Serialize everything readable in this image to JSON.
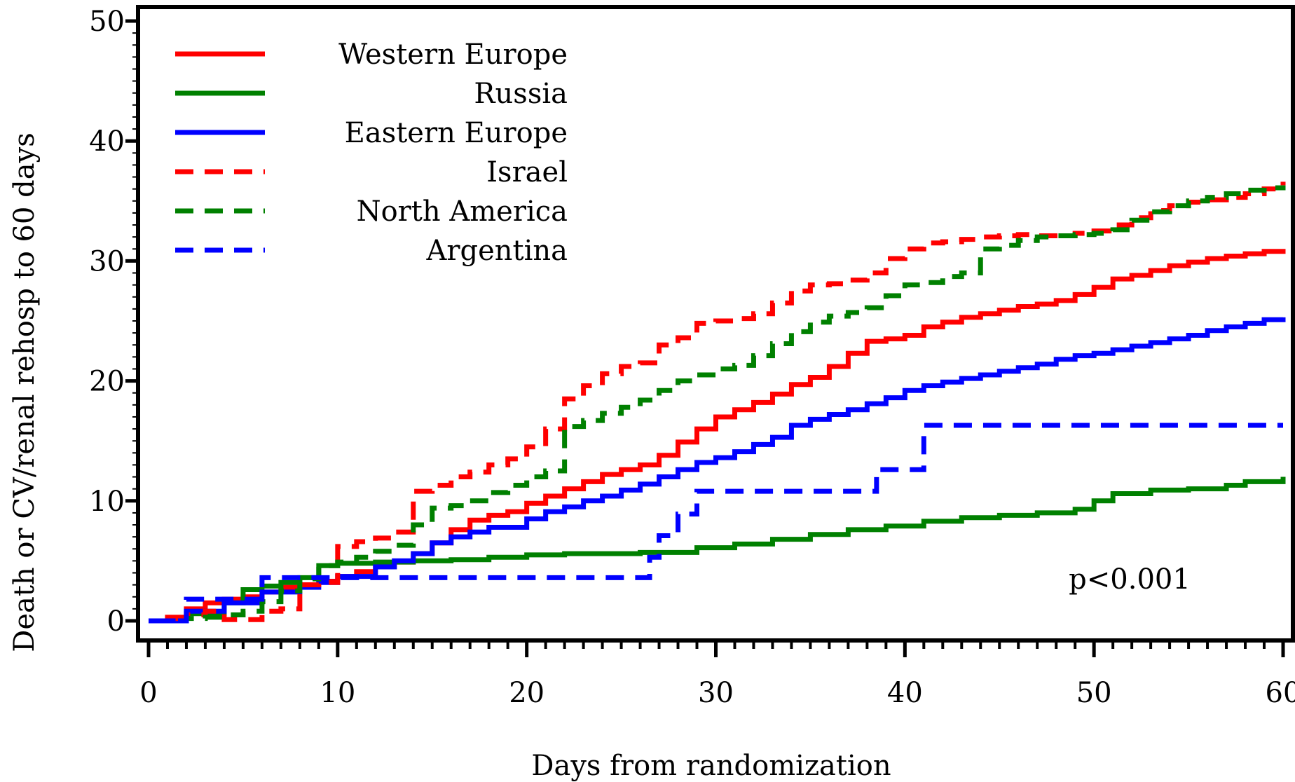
{
  "chart_data": {
    "type": "line",
    "step": true,
    "xlabel": "Days from randomization",
    "ylabel": "Death or CV/renal rehosp to 60 days",
    "xlim": [
      0,
      60
    ],
    "ylim": [
      0,
      50
    ],
    "x_ticks": [
      0,
      10,
      20,
      30,
      40,
      50,
      60
    ],
    "y_ticks": [
      0,
      10,
      20,
      30,
      40,
      50
    ],
    "grid": false,
    "legend_position": "top-left",
    "annotation": "p<0.001",
    "series": [
      {
        "name": "Western Europe",
        "color": "#ff0000",
        "style": "solid",
        "points": [
          [
            0,
            0
          ],
          [
            1,
            0.3
          ],
          [
            2,
            1.0
          ],
          [
            3,
            1.5
          ],
          [
            4,
            1.8
          ],
          [
            5,
            2.0
          ],
          [
            6,
            2.4
          ],
          [
            7,
            2.8
          ],
          [
            8,
            3.0
          ],
          [
            9,
            3.3
          ],
          [
            10,
            3.7
          ],
          [
            11,
            4.1
          ],
          [
            12,
            4.5
          ],
          [
            13,
            4.9
          ],
          [
            14,
            5.6
          ],
          [
            15,
            6.5
          ],
          [
            16,
            7.6
          ],
          [
            17,
            8.4
          ],
          [
            18,
            8.8
          ],
          [
            19,
            9.1
          ],
          [
            20,
            9.8
          ],
          [
            21,
            10.4
          ],
          [
            22,
            11.0
          ],
          [
            23,
            11.6
          ],
          [
            24,
            12.2
          ],
          [
            25,
            12.6
          ],
          [
            26,
            13.0
          ],
          [
            27,
            13.8
          ],
          [
            28,
            14.9
          ],
          [
            29,
            16.0
          ],
          [
            30,
            17.0
          ],
          [
            31,
            17.6
          ],
          [
            32,
            18.2
          ],
          [
            33,
            18.9
          ],
          [
            34,
            19.7
          ],
          [
            35,
            20.3
          ],
          [
            36,
            21.2
          ],
          [
            37,
            22.3
          ],
          [
            38,
            23.3
          ],
          [
            39,
            23.5
          ],
          [
            40,
            23.8
          ],
          [
            41,
            24.5
          ],
          [
            42,
            24.9
          ],
          [
            43,
            25.3
          ],
          [
            44,
            25.6
          ],
          [
            45,
            25.9
          ],
          [
            46,
            26.2
          ],
          [
            47,
            26.4
          ],
          [
            48,
            26.7
          ],
          [
            49,
            27.2
          ],
          [
            50,
            27.8
          ],
          [
            51,
            28.5
          ],
          [
            52,
            28.8
          ],
          [
            53,
            29.2
          ],
          [
            54,
            29.6
          ],
          [
            55,
            29.9
          ],
          [
            56,
            30.2
          ],
          [
            57,
            30.4
          ],
          [
            58,
            30.6
          ],
          [
            59,
            30.8
          ],
          [
            60,
            31.0
          ]
        ]
      },
      {
        "name": "Russia",
        "color": "#008000",
        "style": "solid",
        "points": [
          [
            0,
            0
          ],
          [
            2,
            0.6
          ],
          [
            4,
            1.5
          ],
          [
            5,
            2.6
          ],
          [
            6,
            2.9
          ],
          [
            7,
            3.2
          ],
          [
            8,
            3.6
          ],
          [
            9,
            4.6
          ],
          [
            10,
            4.8
          ],
          [
            12,
            4.9
          ],
          [
            14,
            5.0
          ],
          [
            16,
            5.1
          ],
          [
            18,
            5.3
          ],
          [
            20,
            5.5
          ],
          [
            22,
            5.6
          ],
          [
            26,
            5.7
          ],
          [
            29,
            6.1
          ],
          [
            31,
            6.4
          ],
          [
            33,
            6.8
          ],
          [
            35,
            7.2
          ],
          [
            37,
            7.6
          ],
          [
            39,
            7.9
          ],
          [
            41,
            8.3
          ],
          [
            43,
            8.6
          ],
          [
            45,
            8.8
          ],
          [
            47,
            9.0
          ],
          [
            49,
            9.3
          ],
          [
            50,
            10.0
          ],
          [
            51,
            10.6
          ],
          [
            53,
            10.9
          ],
          [
            55,
            11.0
          ],
          [
            57,
            11.3
          ],
          [
            58,
            11.6
          ],
          [
            60,
            12.0
          ]
        ]
      },
      {
        "name": "Eastern Europe",
        "color": "#0000ff",
        "style": "solid",
        "points": [
          [
            0,
            0
          ],
          [
            2,
            0.8
          ],
          [
            4,
            1.5
          ],
          [
            6,
            2.4
          ],
          [
            8,
            2.8
          ],
          [
            9,
            3.2
          ],
          [
            10,
            3.7
          ],
          [
            12,
            4.5
          ],
          [
            13,
            5.0
          ],
          [
            14,
            5.6
          ],
          [
            15,
            6.5
          ],
          [
            16,
            7.0
          ],
          [
            17,
            7.4
          ],
          [
            18,
            7.8
          ],
          [
            20,
            8.5
          ],
          [
            21,
            9.1
          ],
          [
            22,
            9.5
          ],
          [
            23,
            10.0
          ],
          [
            24,
            10.4
          ],
          [
            25,
            10.9
          ],
          [
            26,
            11.4
          ],
          [
            27,
            12.0
          ],
          [
            28,
            12.6
          ],
          [
            29,
            13.2
          ],
          [
            30,
            13.6
          ],
          [
            31,
            14.1
          ],
          [
            32,
            14.7
          ],
          [
            33,
            15.3
          ],
          [
            34,
            16.3
          ],
          [
            35,
            16.8
          ],
          [
            36,
            17.2
          ],
          [
            37,
            17.6
          ],
          [
            38,
            18.1
          ],
          [
            39,
            18.6
          ],
          [
            40,
            19.2
          ],
          [
            41,
            19.6
          ],
          [
            42,
            19.9
          ],
          [
            43,
            20.2
          ],
          [
            44,
            20.5
          ],
          [
            45,
            20.8
          ],
          [
            46,
            21.1
          ],
          [
            47,
            21.4
          ],
          [
            48,
            21.8
          ],
          [
            49,
            22.1
          ],
          [
            50,
            22.3
          ],
          [
            51,
            22.6
          ],
          [
            52,
            22.9
          ],
          [
            53,
            23.2
          ],
          [
            54,
            23.5
          ],
          [
            55,
            23.8
          ],
          [
            56,
            24.2
          ],
          [
            57,
            24.5
          ],
          [
            58,
            24.8
          ],
          [
            59,
            25.1
          ],
          [
            60,
            25.3
          ]
        ]
      },
      {
        "name": "Israel",
        "color": "#ff0000",
        "style": "dashed",
        "points": [
          [
            0,
            0
          ],
          [
            1,
            0.2
          ],
          [
            2,
            0.5
          ],
          [
            3,
            0.8
          ],
          [
            4,
            0.1
          ],
          [
            5,
            0.1
          ],
          [
            6,
            0.8
          ],
          [
            7,
            1.0
          ],
          [
            8,
            3.0
          ],
          [
            9,
            3.2
          ],
          [
            10,
            6.2
          ],
          [
            11,
            6.6
          ],
          [
            12,
            6.9
          ],
          [
            13,
            7.4
          ],
          [
            14,
            10.8
          ],
          [
            15,
            11.3
          ],
          [
            16,
            12.0
          ],
          [
            17,
            12.4
          ],
          [
            18,
            13.0
          ],
          [
            19,
            13.5
          ],
          [
            20,
            14.5
          ],
          [
            21,
            16.0
          ],
          [
            22,
            18.5
          ],
          [
            23,
            19.6
          ],
          [
            24,
            20.6
          ],
          [
            25,
            21.2
          ],
          [
            26,
            21.5
          ],
          [
            27,
            23.0
          ],
          [
            28,
            23.6
          ],
          [
            29,
            24.8
          ],
          [
            30,
            25.0
          ],
          [
            31,
            25.2
          ],
          [
            32,
            25.6
          ],
          [
            33,
            26.5
          ],
          [
            34,
            27.5
          ],
          [
            35,
            28.0
          ],
          [
            36,
            28.1
          ],
          [
            37,
            28.4
          ],
          [
            38,
            29.0
          ],
          [
            39,
            30.2
          ],
          [
            40,
            31.0
          ],
          [
            41,
            31.5
          ],
          [
            42,
            31.6
          ],
          [
            43,
            31.8
          ],
          [
            44,
            32.0
          ],
          [
            45,
            32.1
          ],
          [
            46,
            32.2
          ],
          [
            47,
            32.1
          ],
          [
            48,
            32.1
          ],
          [
            49,
            32.3
          ],
          [
            50,
            32.5
          ],
          [
            51,
            33.0
          ],
          [
            52,
            33.6
          ],
          [
            53,
            34.2
          ],
          [
            54,
            34.6
          ],
          [
            55,
            34.9
          ],
          [
            56,
            35.1
          ],
          [
            57,
            35.3
          ],
          [
            58,
            35.6
          ],
          [
            59,
            36.0
          ],
          [
            60,
            36.6
          ]
        ]
      },
      {
        "name": "North America",
        "color": "#008000",
        "style": "dashed",
        "points": [
          [
            0,
            0
          ],
          [
            2,
            0.2
          ],
          [
            3,
            0.3
          ],
          [
            4,
            0.5
          ],
          [
            5,
            0.8
          ],
          [
            6,
            1.6
          ],
          [
            7,
            2.5
          ],
          [
            8,
            3.5
          ],
          [
            9,
            4.6
          ],
          [
            10,
            4.9
          ],
          [
            11,
            5.3
          ],
          [
            12,
            5.8
          ],
          [
            13,
            6.3
          ],
          [
            14,
            8.0
          ],
          [
            15,
            9.4
          ],
          [
            16,
            9.6
          ],
          [
            17,
            10.0
          ],
          [
            18,
            10.7
          ],
          [
            19,
            11.3
          ],
          [
            20,
            12.0
          ],
          [
            21,
            12.5
          ],
          [
            22,
            16.2
          ],
          [
            23,
            16.7
          ],
          [
            24,
            17.3
          ],
          [
            25,
            17.8
          ],
          [
            26,
            18.4
          ],
          [
            27,
            19.2
          ],
          [
            28,
            20.0
          ],
          [
            29,
            20.5
          ],
          [
            30,
            21.0
          ],
          [
            31,
            21.3
          ],
          [
            32,
            22.1
          ],
          [
            33,
            23.1
          ],
          [
            34,
            24.1
          ],
          [
            35,
            24.9
          ],
          [
            36,
            25.4
          ],
          [
            37,
            25.7
          ],
          [
            38,
            26.1
          ],
          [
            39,
            27.1
          ],
          [
            40,
            28.0
          ],
          [
            41,
            28.2
          ],
          [
            42,
            28.7
          ],
          [
            43,
            29.0
          ],
          [
            44,
            31.0
          ],
          [
            45,
            31.3
          ],
          [
            46,
            31.7
          ],
          [
            47,
            32.0
          ],
          [
            48,
            32.1
          ],
          [
            49,
            32.2
          ],
          [
            50,
            32.3
          ],
          [
            51,
            32.6
          ],
          [
            52,
            33.4
          ],
          [
            53,
            34.1
          ],
          [
            54,
            34.6
          ],
          [
            55,
            35.0
          ],
          [
            56,
            35.3
          ],
          [
            57,
            35.6
          ],
          [
            58,
            35.9
          ],
          [
            59,
            36.1
          ],
          [
            60,
            36.3
          ]
        ]
      },
      {
        "name": "Argentina",
        "color": "#0000ff",
        "style": "dashed",
        "points": [
          [
            0,
            0
          ],
          [
            2,
            1.8
          ],
          [
            5,
            1.8
          ],
          [
            6,
            3.6
          ],
          [
            26,
            3.6
          ],
          [
            26.5,
            5.3
          ],
          [
            27,
            7.1
          ],
          [
            28,
            8.9
          ],
          [
            29,
            10.8
          ],
          [
            38,
            10.8
          ],
          [
            38.5,
            12.6
          ],
          [
            41,
            12.6
          ],
          [
            41,
            16.3
          ],
          [
            60,
            16.3
          ]
        ]
      }
    ]
  }
}
